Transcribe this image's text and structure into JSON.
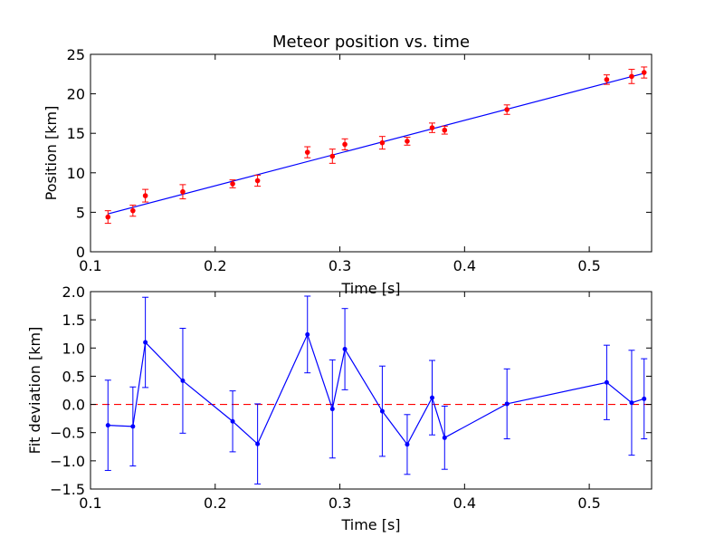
{
  "chart_data": [
    {
      "type": "scatter",
      "title": "Meteor position vs. time",
      "xlabel": "Time [s]",
      "ylabel": "Position [km]",
      "xlim": [
        0.1,
        0.55
      ],
      "ylim": [
        0,
        25
      ],
      "xticks": [
        "0.1",
        "0.2",
        "0.3",
        "0.4",
        "0.5"
      ],
      "yticks": [
        "0",
        "5",
        "10",
        "15",
        "20",
        "25"
      ],
      "grid": false,
      "colors": {
        "points": "#ff0000",
        "errorbars": "#ff0000",
        "fit": "#0000ff"
      },
      "series": [
        {
          "x": [
            0.114,
            0.134,
            0.144,
            0.174,
            0.214,
            0.234,
            0.274,
            0.294,
            0.304,
            0.334,
            0.354,
            0.374,
            0.384,
            0.434,
            0.514,
            0.534,
            0.544
          ],
          "y": [
            4.4,
            5.2,
            7.1,
            7.6,
            8.6,
            9.0,
            12.6,
            12.1,
            13.6,
            13.8,
            14.0,
            15.7,
            15.4,
            18.0,
            21.8,
            22.2,
            22.7
          ],
          "yerr": [
            0.8,
            0.7,
            0.8,
            0.9,
            0.5,
            0.7,
            0.7,
            0.9,
            0.7,
            0.8,
            0.5,
            0.6,
            0.5,
            0.6,
            0.6,
            0.9,
            0.7
          ]
        }
      ],
      "fit_line": {
        "x": [
          0.114,
          0.544
        ],
        "y": [
          4.8,
          22.6
        ]
      }
    },
    {
      "type": "line",
      "title": "",
      "xlabel": "Time [s]",
      "ylabel": "Fit deviation [km]",
      "xlim": [
        0.1,
        0.55
      ],
      "ylim": [
        -1.5,
        2.0
      ],
      "xticks": [
        "0.1",
        "0.2",
        "0.3",
        "0.4",
        "0.5"
      ],
      "yticks": [
        "−1.5",
        "−1.0",
        "−0.5",
        "0.0",
        "0.5",
        "1.0",
        "1.5",
        "2.0"
      ],
      "grid": false,
      "colors": {
        "line": "#0000ff",
        "zero": "#ff0000"
      },
      "series": [
        {
          "x": [
            0.114,
            0.134,
            0.144,
            0.174,
            0.214,
            0.234,
            0.274,
            0.294,
            0.304,
            0.334,
            0.354,
            0.374,
            0.384,
            0.434,
            0.514,
            0.534,
            0.544
          ],
          "y": [
            -0.37,
            -0.39,
            1.1,
            0.42,
            -0.3,
            -0.7,
            1.24,
            -0.08,
            0.98,
            -0.12,
            -0.71,
            0.12,
            -0.59,
            0.01,
            0.39,
            0.03,
            0.1
          ],
          "yerr": [
            0.8,
            0.7,
            0.8,
            0.93,
            0.54,
            0.71,
            0.68,
            0.87,
            0.72,
            0.8,
            0.53,
            0.66,
            0.56,
            0.62,
            0.66,
            0.93,
            0.71
          ]
        }
      ],
      "zero_line": 0.0
    }
  ]
}
